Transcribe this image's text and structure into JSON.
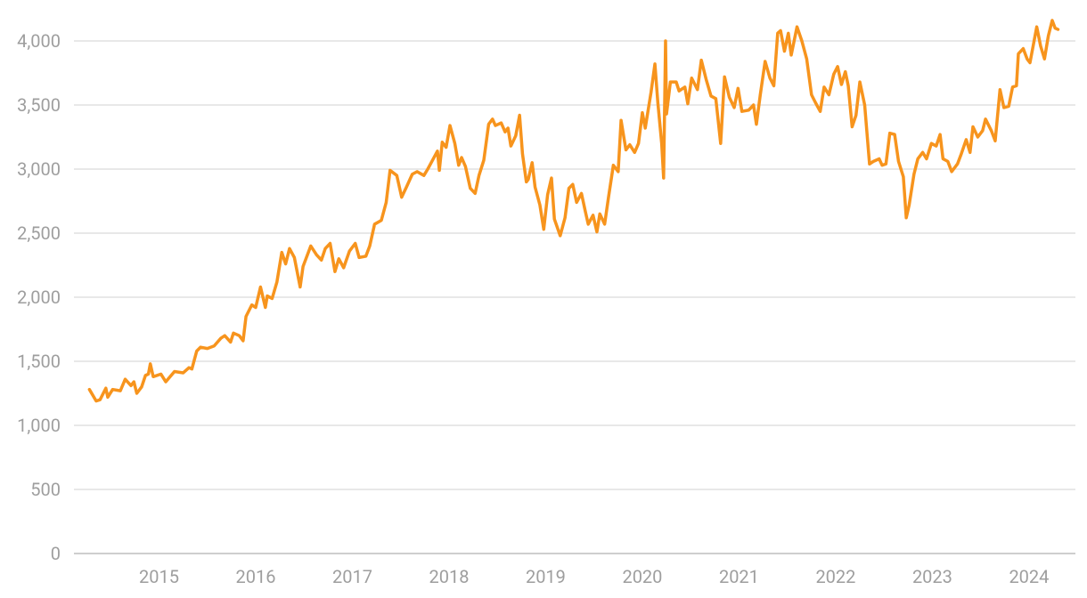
{
  "chart_data": {
    "type": "line",
    "x": [
      2014.28,
      2014.35,
      2014.39,
      2014.45,
      2014.47,
      2014.52,
      2014.6,
      2014.65,
      2014.71,
      2014.74,
      2014.77,
      2014.82,
      2014.86,
      2014.89,
      2014.91,
      2014.94,
      2015.02,
      2015.07,
      2015.16,
      2015.25,
      2015.31,
      2015.34,
      2015.39,
      2015.43,
      2015.5,
      2015.57,
      2015.64,
      2015.68,
      2015.74,
      2015.77,
      2015.83,
      2015.87,
      2015.9,
      2015.96,
      2016.0,
      2016.05,
      2016.1,
      2016.12,
      2016.17,
      2016.22,
      2016.27,
      2016.31,
      2016.35,
      2016.4,
      2016.46,
      2016.49,
      2016.57,
      2016.63,
      2016.68,
      2016.72,
      2016.77,
      2016.82,
      2016.86,
      2016.91,
      2016.97,
      2017.03,
      2017.07,
      2017.14,
      2017.18,
      2017.23,
      2017.3,
      2017.35,
      2017.39,
      2017.46,
      2017.51,
      2017.56,
      2017.62,
      2017.67,
      2017.74,
      2017.78,
      2017.83,
      2017.88,
      2017.9,
      2017.93,
      2017.97,
      2018.01,
      2018.06,
      2018.1,
      2018.13,
      2018.17,
      2018.22,
      2018.27,
      2018.31,
      2018.36,
      2018.41,
      2018.45,
      2018.48,
      2018.54,
      2018.58,
      2018.61,
      2018.64,
      2018.69,
      2018.73,
      2018.76,
      2018.8,
      2018.82,
      2018.86,
      2018.89,
      2018.94,
      2018.98,
      2019.02,
      2019.06,
      2019.09,
      2019.15,
      2019.2,
      2019.24,
      2019.28,
      2019.32,
      2019.37,
      2019.41,
      2019.44,
      2019.49,
      2019.53,
      2019.56,
      2019.61,
      2019.65,
      2019.7,
      2019.75,
      2019.78,
      2019.83,
      2019.87,
      2019.92,
      2019.96,
      2020.0,
      2020.03,
      2020.09,
      2020.13,
      2020.16,
      2020.2,
      2020.22,
      2020.24,
      2020.25,
      2020.29,
      2020.35,
      2020.38,
      2020.44,
      2020.47,
      2020.51,
      2020.57,
      2020.61,
      2020.66,
      2020.71,
      2020.76,
      2020.81,
      2020.85,
      2020.9,
      2020.95,
      2020.99,
      2021.03,
      2021.1,
      2021.15,
      2021.18,
      2021.22,
      2021.27,
      2021.32,
      2021.36,
      2021.4,
      2021.43,
      2021.47,
      2021.51,
      2021.54,
      2021.6,
      2021.65,
      2021.7,
      2021.75,
      2021.79,
      2021.84,
      2021.88,
      2021.93,
      2021.98,
      2022.02,
      2022.06,
      2022.1,
      2022.13,
      2022.17,
      2022.21,
      2022.25,
      2022.3,
      2022.35,
      2022.39,
      2022.45,
      2022.48,
      2022.52,
      2022.56,
      2022.61,
      2022.65,
      2022.7,
      2022.73,
      2022.76,
      2022.81,
      2022.85,
      2022.9,
      2022.94,
      2022.99,
      2023.04,
      2023.08,
      2023.11,
      2023.16,
      2023.2,
      2023.26,
      2023.3,
      2023.35,
      2023.39,
      2023.42,
      2023.47,
      2023.52,
      2023.55,
      2023.61,
      2023.65,
      2023.7,
      2023.74,
      2023.79,
      2023.83,
      2023.87,
      2023.89,
      2023.94,
      2023.98,
      2024.01,
      2024.08,
      2024.12,
      2024.16,
      2024.2,
      2024.24,
      2024.27,
      2024.3
    ],
    "values": [
      1280,
      1190,
      1200,
      1290,
      1220,
      1280,
      1270,
      1360,
      1310,
      1340,
      1250,
      1300,
      1390,
      1400,
      1480,
      1380,
      1400,
      1340,
      1420,
      1410,
      1450,
      1440,
      1580,
      1610,
      1600,
      1620,
      1680,
      1700,
      1650,
      1720,
      1700,
      1660,
      1850,
      1940,
      1920,
      2080,
      1920,
      2010,
      1990,
      2120,
      2350,
      2260,
      2380,
      2310,
      2080,
      2240,
      2400,
      2330,
      2290,
      2380,
      2420,
      2200,
      2300,
      2230,
      2360,
      2420,
      2310,
      2320,
      2400,
      2570,
      2600,
      2740,
      2990,
      2950,
      2780,
      2860,
      2960,
      2980,
      2950,
      3000,
      3070,
      3140,
      2990,
      3210,
      3170,
      3340,
      3200,
      3030,
      3090,
      3020,
      2850,
      2810,
      2950,
      3070,
      3350,
      3390,
      3340,
      3360,
      3290,
      3320,
      3180,
      3260,
      3420,
      3120,
      2900,
      2920,
      3050,
      2860,
      2720,
      2530,
      2800,
      2930,
      2610,
      2480,
      2620,
      2850,
      2880,
      2740,
      2810,
      2670,
      2570,
      2640,
      2510,
      2650,
      2570,
      2780,
      3030,
      2980,
      3380,
      3150,
      3190,
      3130,
      3200,
      3440,
      3320,
      3600,
      3820,
      3520,
      3200,
      2930,
      4000,
      3430,
      3680,
      3680,
      3610,
      3640,
      3510,
      3710,
      3620,
      3850,
      3700,
      3570,
      3550,
      3200,
      3720,
      3560,
      3480,
      3630,
      3450,
      3460,
      3500,
      3350,
      3580,
      3840,
      3710,
      3650,
      4060,
      4080,
      3920,
      4060,
      3890,
      4110,
      4000,
      3860,
      3580,
      3520,
      3450,
      3640,
      3580,
      3740,
      3800,
      3660,
      3760,
      3650,
      3330,
      3420,
      3680,
      3500,
      3040,
      3060,
      3080,
      3030,
      3040,
      3280,
      3270,
      3060,
      2940,
      2620,
      2720,
      2960,
      3080,
      3130,
      3080,
      3200,
      3180,
      3270,
      3080,
      3060,
      2980,
      3040,
      3120,
      3230,
      3130,
      3330,
      3250,
      3300,
      3390,
      3300,
      3220,
      3620,
      3480,
      3490,
      3640,
      3650,
      3900,
      3940,
      3860,
      3830,
      4110,
      3960,
      3860,
      4040,
      4160,
      4100,
      4090
    ],
    "color": "#f7941d",
    "xlim": [
      2014.12,
      2024.48
    ],
    "xticks": [
      2015,
      2016,
      2017,
      2018,
      2019,
      2020,
      2021,
      2022,
      2023,
      2024
    ],
    "ylim": [
      0,
      4000
    ],
    "yticks": [
      0,
      500,
      {
        "value": 1000,
        "label": "1,000"
      },
      {
        "value": 1500,
        "label": "1,500"
      },
      {
        "value": 2000,
        "label": "2,000"
      },
      {
        "value": 2500,
        "label": "2,500"
      },
      {
        "value": 3000,
        "label": "3,000"
      },
      {
        "value": 3500,
        "label": "3,500"
      },
      {
        "value": 4000,
        "label": "4,000"
      }
    ],
    "grid": true
  }
}
